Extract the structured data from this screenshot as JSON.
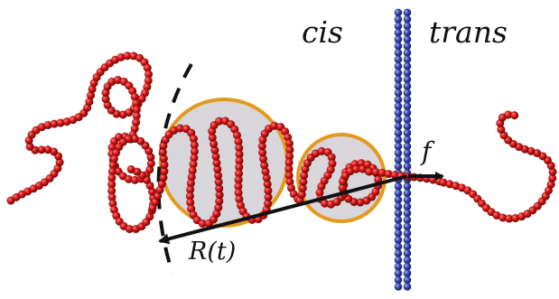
{
  "labels": {
    "cis": "cis",
    "trans": "trans",
    "force": "f",
    "radius": "R(t)"
  },
  "colors": {
    "polymer_bead": "#d01818",
    "polymer_bead_highlight": "#ff6f6f",
    "polymer_bead_shadow": "#6a0000",
    "membrane_bead": "#3346a8",
    "membrane_bead_highlight": "#8b9ce6",
    "blob_fill": "#d8d6db",
    "blob_stroke": "#e39a1d",
    "arrow": "#111111"
  }
}
